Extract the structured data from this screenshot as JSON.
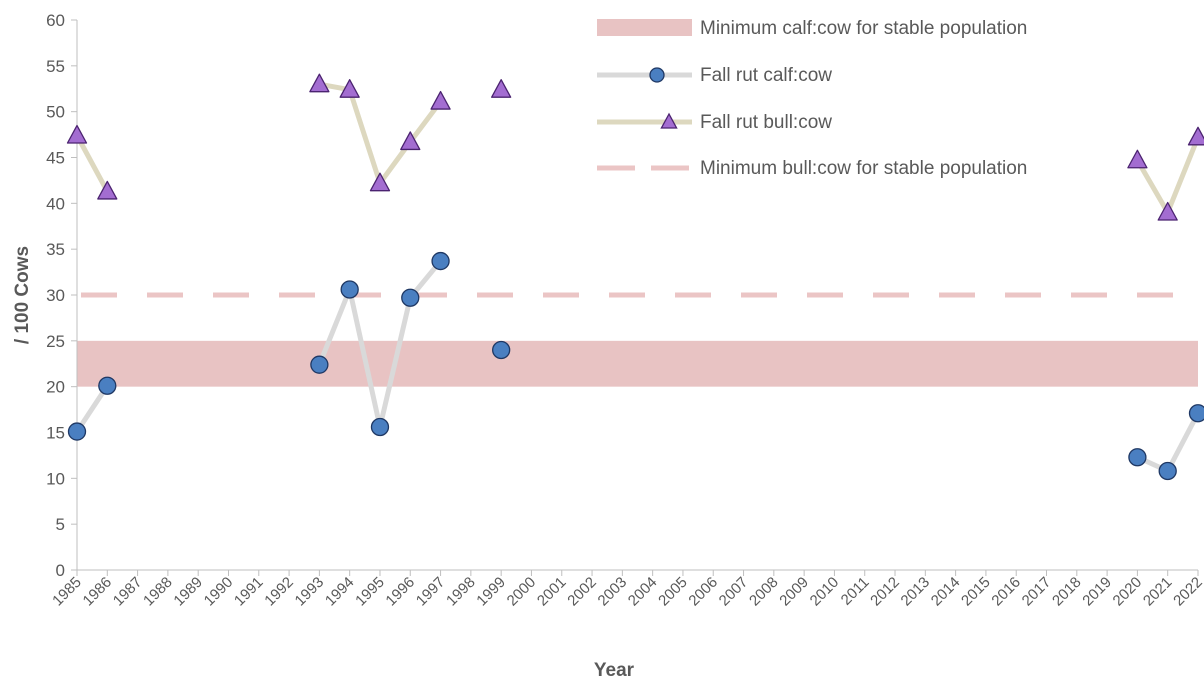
{
  "chart_data": {
    "type": "line",
    "xlabel": "Year",
    "ylabel": "/ 100 Cows",
    "ylim": [
      0,
      60
    ],
    "yticks": [
      0,
      5,
      10,
      15,
      20,
      25,
      30,
      35,
      40,
      45,
      50,
      55,
      60
    ],
    "xlim": [
      1985,
      2022
    ],
    "categories": [
      "1985",
      "1986",
      "1987",
      "1988",
      "1989",
      "1990",
      "1991",
      "1992",
      "1993",
      "1994",
      "1995",
      "1996",
      "1997",
      "1998",
      "1999",
      "2000",
      "2001",
      "2002",
      "2003",
      "2004",
      "2005",
      "2006",
      "2007",
      "2008",
      "2009",
      "2010",
      "2011",
      "2012",
      "2013",
      "2014",
      "2015",
      "2016",
      "2017",
      "2018",
      "2019",
      "2020",
      "2021",
      "2022"
    ],
    "band": {
      "name": "Minimum calf:cow for stable population",
      "range": [
        20,
        25
      ],
      "color": "#e8c3c3"
    },
    "reference_line": {
      "name": "Minimum bull:cow for stable population",
      "value": 30,
      "color": "#ebc5c5"
    },
    "series": [
      {
        "name": "Fall rut calf:cow",
        "marker": "circle",
        "marker_color": "#4a7fc1",
        "line_color": "#d9d9d9",
        "segments": [
          [
            [
              1985,
              15.1
            ],
            [
              1986,
              20.1
            ]
          ],
          [
            [
              1993,
              22.4
            ],
            [
              1994,
              30.6
            ],
            [
              1995,
              15.6
            ],
            [
              1996,
              29.7
            ],
            [
              1997,
              33.7
            ]
          ],
          [
            [
              1999,
              24.0
            ]
          ],
          [
            [
              2020,
              12.3
            ],
            [
              2021,
              10.8
            ],
            [
              2022,
              17.1
            ]
          ]
        ]
      },
      {
        "name": "Fall rut bull:cow",
        "marker": "triangle",
        "marker_color": "#a36dd1",
        "line_color": "#ddd8bf",
        "segments": [
          [
            [
              1985,
              47.4
            ],
            [
              1986,
              41.3
            ]
          ],
          [
            [
              1993,
              53.0
            ],
            [
              1994,
              52.4
            ],
            [
              1995,
              42.2
            ],
            [
              1996,
              46.7
            ],
            [
              1997,
              51.1
            ]
          ],
          [
            [
              1999,
              52.4
            ]
          ],
          [
            [
              2020,
              44.7
            ],
            [
              2021,
              39.0
            ],
            [
              2022,
              47.2
            ]
          ]
        ]
      }
    ],
    "legend_placement": "top-right",
    "grid": false
  }
}
